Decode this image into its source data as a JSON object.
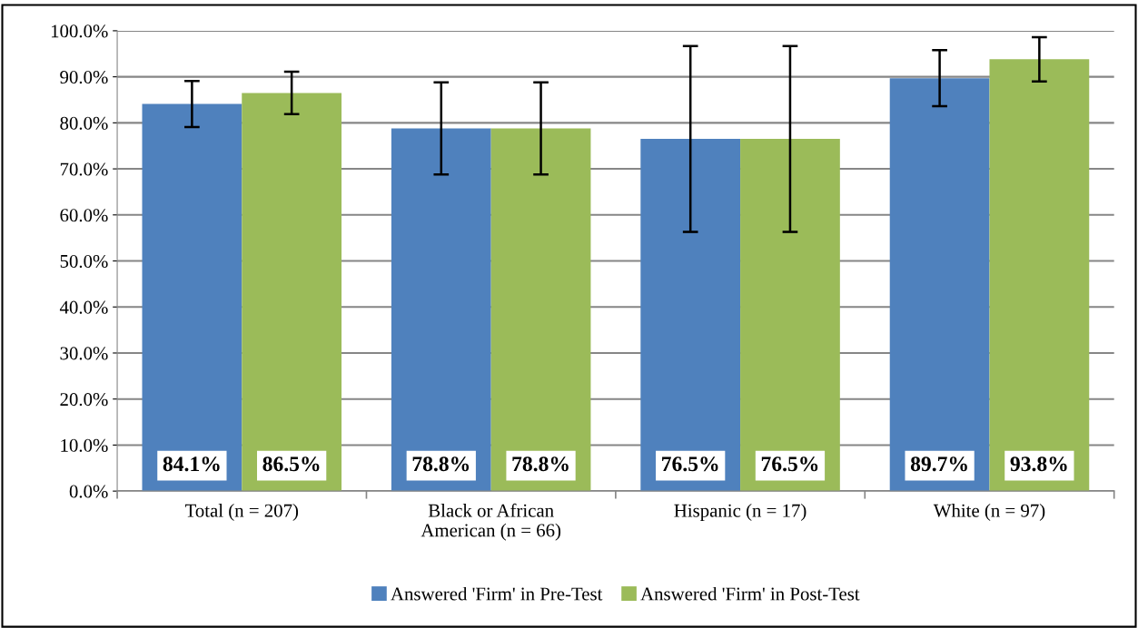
{
  "chart_data": {
    "type": "bar",
    "categories": [
      "Total (n = 207)",
      "Black or African\nAmerican (n = 66)",
      "Hispanic (n = 17)",
      "White (n = 97)"
    ],
    "series": [
      {
        "name": "Answered 'Firm' in Pre-Test",
        "color": "#4f81bd",
        "values": [
          84.1,
          78.8,
          76.5,
          89.7
        ],
        "errors": [
          5.0,
          10.0,
          20.2,
          6.1
        ],
        "value_labels": [
          "84.1%",
          "78.8%",
          "76.5%",
          "89.7%"
        ]
      },
      {
        "name": "Answered 'Firm' in Post-Test",
        "color": "#9bbb59",
        "values": [
          86.5,
          78.8,
          76.5,
          93.8
        ],
        "errors": [
          4.6,
          10.0,
          20.2,
          4.8
        ],
        "value_labels": [
          "86.5%",
          "78.8%",
          "76.5%",
          "93.8%"
        ]
      }
    ],
    "ylim": [
      0,
      100
    ],
    "yticks": [
      {
        "value": 0,
        "label": "0.0%"
      },
      {
        "value": 10,
        "label": "10.0%"
      },
      {
        "value": 20,
        "label": "20.0%"
      },
      {
        "value": 30,
        "label": "30.0%"
      },
      {
        "value": 40,
        "label": "40.0%"
      },
      {
        "value": 50,
        "label": "50.0%"
      },
      {
        "value": 60,
        "label": "60.0%"
      },
      {
        "value": 70,
        "label": "70.0%"
      },
      {
        "value": 80,
        "label": "80.0%"
      },
      {
        "value": 90,
        "label": "90.0%"
      },
      {
        "value": 100,
        "label": "100.0%"
      }
    ],
    "grid": "y",
    "legend": "bottom"
  }
}
